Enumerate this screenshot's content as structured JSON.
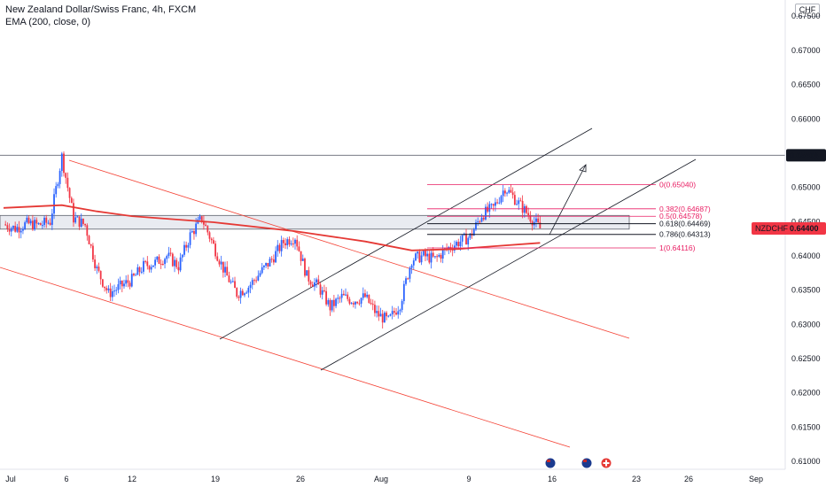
{
  "legend": {
    "symbol_line": "New Zealand Dollar/Swiss Franc, 4h, FXCM",
    "indicator_line": "EMA (200, close, 0)"
  },
  "currency_badge": "CHF",
  "price_tags": {
    "level": "0.65468",
    "current_symbol": "NZDCHF",
    "current_price": "0.64400"
  },
  "colors": {
    "bull": "#2962ff",
    "bear": "#f23645",
    "ema": "#e53935",
    "fib": "#e91e63",
    "trend": "#131722",
    "channel": "#f44336",
    "tag": "#f23645"
  },
  "icons": [
    "nz-flag-icon",
    "nz-flag-icon",
    "swiss-flag-icon"
  ],
  "chart_data": {
    "type": "candlestick",
    "title": "New Zealand Dollar/Swiss Franc, 4h, FXCM",
    "currency": "CHF",
    "x_ticks": [
      "Jul",
      "6",
      "12",
      "19",
      "26",
      "Aug",
      "9",
      "16",
      "23",
      "26",
      "Sep"
    ],
    "y_ticks": [
      "0.67500",
      "0.67000",
      "0.66500",
      "0.66000",
      "0.65500",
      "0.65000",
      "0.64500",
      "0.64000",
      "0.63500",
      "0.63000",
      "0.62500",
      "0.62000",
      "0.61500",
      "0.61000"
    ],
    "y_range": [
      0.6095,
      0.6785
    ],
    "grid": false,
    "close_path": [
      [
        "Jul 1",
        0.6446
      ],
      [
        "Jul 2",
        0.644
      ],
      [
        "Jul 3",
        0.6447
      ],
      [
        "Jul 4",
        0.6445
      ],
      [
        "Jul 5",
        0.645
      ],
      [
        "Jul 6",
        0.6545
      ],
      [
        "Jul 7",
        0.6455
      ],
      [
        "Jul 8",
        0.6445
      ],
      [
        "Jul 9",
        0.638
      ],
      [
        "Jul 10",
        0.6345
      ],
      [
        "Jul 11",
        0.6355
      ],
      [
        "Jul 12",
        0.6365
      ],
      [
        "Jul 13",
        0.6385
      ],
      [
        "Jul 14",
        0.639
      ],
      [
        "Jul 15",
        0.64
      ],
      [
        "Jul 16",
        0.6385
      ],
      [
        "Jul 17",
        0.643
      ],
      [
        "Jul 18",
        0.6455
      ],
      [
        "Jul 19",
        0.6415
      ],
      [
        "Jul 20",
        0.6375
      ],
      [
        "Jul 21",
        0.6345
      ],
      [
        "Jul 22",
        0.6355
      ],
      [
        "Jul 23",
        0.6375
      ],
      [
        "Jul 24",
        0.6395
      ],
      [
        "Jul 25",
        0.642
      ],
      [
        "Jul 26",
        0.6428
      ],
      [
        "Jul 27",
        0.637
      ],
      [
        "Jul 28",
        0.6355
      ],
      [
        "Jul 29",
        0.6325
      ],
      [
        "Jul 30",
        0.634
      ],
      [
        "Jul 31",
        0.6335
      ],
      [
        "Aug 1",
        0.634
      ],
      [
        "Aug 2",
        0.6315
      ],
      [
        "Aug 3",
        0.6305
      ],
      [
        "Aug 4",
        0.633
      ],
      [
        "Aug 5",
        0.6395
      ],
      [
        "Aug 6",
        0.64
      ],
      [
        "Aug 7",
        0.6395
      ],
      [
        "Aug 8",
        0.641
      ],
      [
        "Aug 9",
        0.642
      ],
      [
        "Aug 10",
        0.6428
      ],
      [
        "Aug 11",
        0.646
      ],
      [
        "Aug 12",
        0.647
      ],
      [
        "Aug 13",
        0.65
      ],
      [
        "Aug 14",
        0.648
      ],
      [
        "Aug 15",
        0.646
      ],
      [
        "Aug 16",
        0.644
      ]
    ],
    "ema_200": [
      [
        "Jul 1",
        0.647
      ],
      [
        "Jul 6",
        0.6474
      ],
      [
        "Jul 9",
        0.6465
      ],
      [
        "Jul 12",
        0.6458
      ],
      [
        "Jul 19",
        0.6449
      ],
      [
        "Jul 26",
        0.6436
      ],
      [
        "Aug 1",
        0.6421
      ],
      [
        "Aug 5",
        0.6408
      ],
      [
        "Aug 9",
        0.641
      ],
      [
        "Aug 12",
        0.6414
      ],
      [
        "Aug 16",
        0.6419
      ]
    ],
    "support_zone": [
      0.6439,
      0.6459
    ],
    "horizontal_level": 0.65468,
    "fibonacci": [
      {
        "ratio": "0",
        "label": "0(0.65040)",
        "value": 0.6504
      },
      {
        "ratio": "0.382",
        "label": "0.382(0.64687)",
        "value": 0.64687
      },
      {
        "ratio": "0.5",
        "label": "0.5(0.64578)",
        "value": 0.64578
      },
      {
        "ratio": "0.618",
        "label": "0.618(0.64469)",
        "value": 0.64469
      },
      {
        "ratio": "0.786",
        "label": "0.786(0.64313)",
        "value": 0.64313
      },
      {
        "ratio": "1",
        "label": "1(0.64116)",
        "value": 0.64116
      }
    ],
    "current_price": 0.644
  }
}
